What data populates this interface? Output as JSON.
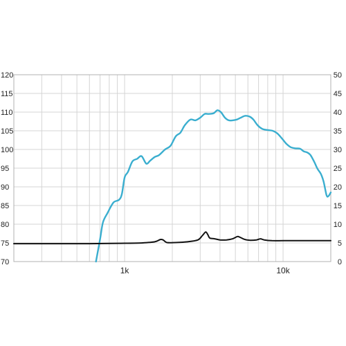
{
  "chart_data": {
    "type": "line",
    "title": "",
    "xlabel": "",
    "ylabel": "",
    "x_scale": "log",
    "xlim": [
      200,
      20000
    ],
    "ylim_left": [
      70,
      120
    ],
    "ylim_right": [
      0,
      50
    ],
    "grid": true,
    "x_tick_labels": [
      {
        "value": 1000,
        "label": "1k"
      },
      {
        "value": 10000,
        "label": "10k"
      }
    ],
    "y_left_ticks": [
      "70",
      "75",
      "80",
      "85",
      "90",
      "95",
      "100",
      "105",
      "110",
      "115",
      "120"
    ],
    "y_right_ticks": [
      "0",
      "5",
      "10",
      "15",
      "20",
      "25",
      "30",
      "35",
      "40",
      "45",
      "50"
    ],
    "series": [
      {
        "axis": "left",
        "color": "#3aaecf",
        "points": [
          [
            660,
            70
          ],
          [
            700,
            76
          ],
          [
            730,
            80.5
          ],
          [
            780,
            83
          ],
          [
            850,
            85.8
          ],
          [
            920,
            86.5
          ],
          [
            960,
            88
          ],
          [
            1000,
            92.5
          ],
          [
            1050,
            94
          ],
          [
            1120,
            96.8
          ],
          [
            1200,
            97.5
          ],
          [
            1280,
            98.2
          ],
          [
            1370,
            96.2
          ],
          [
            1450,
            97
          ],
          [
            1550,
            98
          ],
          [
            1650,
            98.5
          ],
          [
            1800,
            100
          ],
          [
            1950,
            101
          ],
          [
            2100,
            103.5
          ],
          [
            2250,
            104.5
          ],
          [
            2400,
            106.5
          ],
          [
            2600,
            108
          ],
          [
            2800,
            107.8
          ],
          [
            3000,
            108.5
          ],
          [
            3200,
            109.5
          ],
          [
            3400,
            109.5
          ],
          [
            3650,
            109.7
          ],
          [
            3850,
            110.5
          ],
          [
            4050,
            110
          ],
          [
            4300,
            108.5
          ],
          [
            4550,
            107.8
          ],
          [
            4800,
            107.8
          ],
          [
            5100,
            108
          ],
          [
            5400,
            108.5
          ],
          [
            5750,
            109
          ],
          [
            6150,
            108.8
          ],
          [
            6500,
            108
          ],
          [
            6900,
            106.5
          ],
          [
            7400,
            105.5
          ],
          [
            8000,
            105.2
          ],
          [
            8600,
            105
          ],
          [
            9200,
            104.3
          ],
          [
            9900,
            102.8
          ],
          [
            10500,
            101.5
          ],
          [
            11200,
            100.6
          ],
          [
            12000,
            100.3
          ],
          [
            12800,
            100.2
          ],
          [
            13500,
            99.5
          ],
          [
            14200,
            99.2
          ],
          [
            14900,
            98.5
          ],
          [
            15800,
            96.5
          ],
          [
            16500,
            94.8
          ],
          [
            17300,
            93.5
          ],
          [
            18000,
            91.5
          ],
          [
            18800,
            87.8
          ],
          [
            19300,
            87.5
          ],
          [
            20000,
            88.5
          ]
        ]
      },
      {
        "axis": "right",
        "color": "#111111",
        "points": [
          [
            200,
            4.8
          ],
          [
            600,
            4.8
          ],
          [
            1000,
            4.9
          ],
          [
            1300,
            5
          ],
          [
            1550,
            5.3
          ],
          [
            1680,
            5.9
          ],
          [
            1750,
            5.8
          ],
          [
            1850,
            5.1
          ],
          [
            2100,
            5.1
          ],
          [
            2500,
            5.3
          ],
          [
            2900,
            5.8
          ],
          [
            3100,
            7
          ],
          [
            3250,
            7.9
          ],
          [
            3350,
            7.2
          ],
          [
            3450,
            6.3
          ],
          [
            3700,
            6.1
          ],
          [
            4000,
            5.8
          ],
          [
            4400,
            5.8
          ],
          [
            4800,
            6.1
          ],
          [
            5150,
            6.7
          ],
          [
            5350,
            6.5
          ],
          [
            5750,
            5.9
          ],
          [
            6200,
            5.7
          ],
          [
            6800,
            5.8
          ],
          [
            7200,
            6.1
          ],
          [
            7600,
            5.8
          ],
          [
            8500,
            5.6
          ],
          [
            10000,
            5.6
          ],
          [
            12000,
            5.6
          ],
          [
            15000,
            5.6
          ],
          [
            20000,
            5.6
          ]
        ]
      }
    ]
  }
}
